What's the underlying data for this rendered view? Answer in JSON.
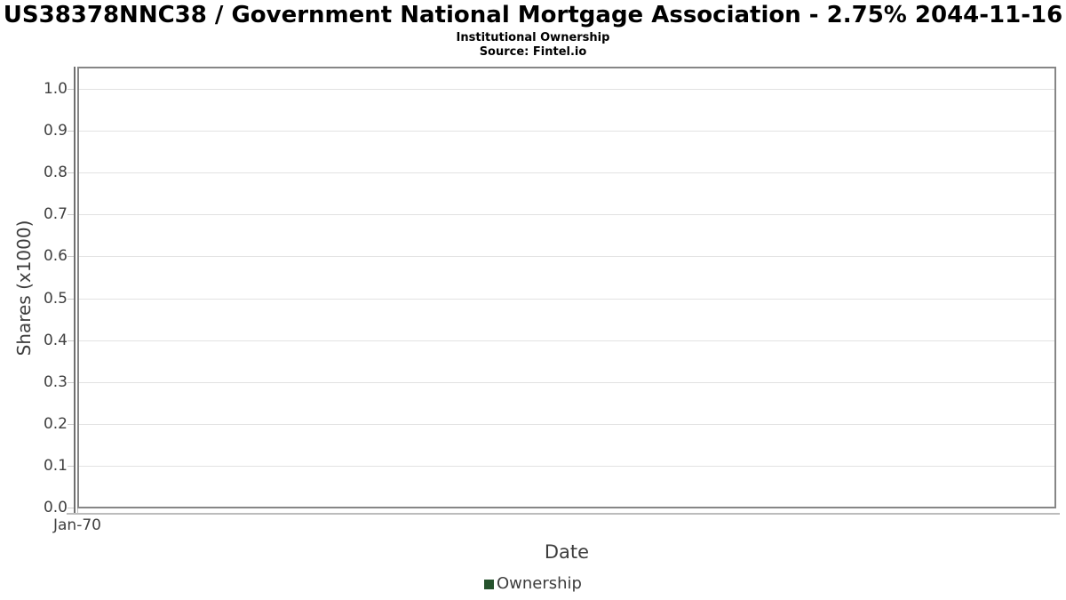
{
  "chart_data": {
    "type": "line",
    "title": "US38378NNC38 / Government National Mortgage Association - 2.75% 2044-11-16",
    "subtitle": "Institutional Ownership",
    "source": "Source: Fintel.io",
    "xlabel": "Date",
    "ylabel": "Shares (x1000)",
    "ylim": [
      0.0,
      1.05
    ],
    "yticks": [
      0.0,
      0.1,
      0.2,
      0.3,
      0.4,
      0.5,
      0.6,
      0.7,
      0.8,
      0.9,
      1.0
    ],
    "ytick_labels": [
      "0.0",
      "0.1",
      "0.2",
      "0.3",
      "0.4",
      "0.5",
      "0.6",
      "0.7",
      "0.8",
      "0.9",
      "1.0"
    ],
    "xtick_labels": [
      "Jan-70"
    ],
    "grid": "horizontal",
    "legend_position": "bottom",
    "series": [
      {
        "name": "Ownership",
        "color": "#25522c",
        "x": [],
        "values": []
      }
    ]
  }
}
